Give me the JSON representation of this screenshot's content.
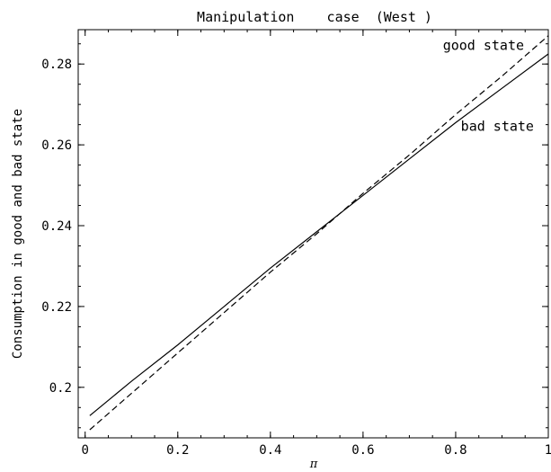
{
  "chart_data": {
    "type": "line",
    "title": "Manipulation    case  (West )",
    "xlabel": "π",
    "ylabel": "Consumption in good and bad state",
    "xlim": [
      -0.015,
      1.0
    ],
    "ylim": [
      0.1875,
      0.2885
    ],
    "x_ticks": [
      0,
      0.2,
      0.4,
      0.6,
      0.8,
      1
    ],
    "x_tick_labels": [
      "0",
      "0.2",
      "0.4",
      "0.6",
      "0.8",
      "1"
    ],
    "y_ticks": [
      0.2,
      0.22,
      0.24,
      0.26,
      0.28
    ],
    "y_tick_labels": [
      "0.2",
      "0.22",
      "0.24",
      "0.26",
      "0.28"
    ],
    "x_minor_step": 0.05,
    "y_minor_step": 0.005,
    "grid": false,
    "legend": "none",
    "series": [
      {
        "name": "good  state",
        "style": "dashed",
        "color": "#000000",
        "x": [
          0.01,
          0.1,
          0.2,
          0.3,
          0.4,
          0.5,
          0.6,
          0.7,
          0.8,
          0.9,
          1.0
        ],
        "y": [
          0.1895,
          0.1985,
          0.2085,
          0.2185,
          0.2285,
          0.238,
          0.248,
          0.2575,
          0.2675,
          0.277,
          0.287
        ]
      },
      {
        "name": "bad  state",
        "style": "solid",
        "color": "#000000",
        "x": [
          0.01,
          0.1,
          0.2,
          0.3,
          0.4,
          0.5,
          0.6,
          0.7,
          0.8,
          0.9,
          1.0
        ],
        "y": [
          0.193,
          0.2015,
          0.2105,
          0.22,
          0.2295,
          0.2385,
          0.2475,
          0.2565,
          0.2655,
          0.274,
          0.2825
        ]
      }
    ],
    "annotations": [
      {
        "text": "good  state",
        "x": 0.86,
        "y": 0.2835
      },
      {
        "text": "bad  state",
        "x": 0.89,
        "y": 0.2635
      }
    ]
  }
}
